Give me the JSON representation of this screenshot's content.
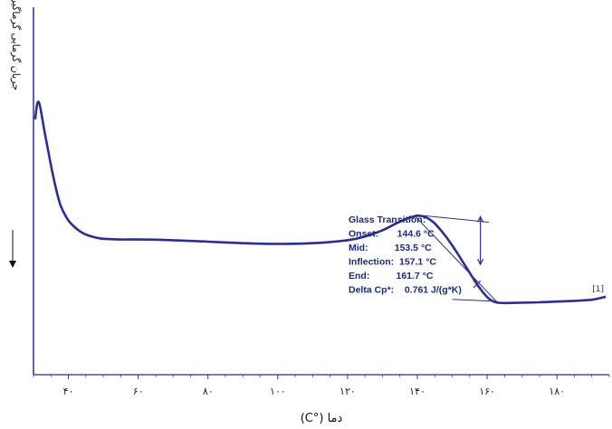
{
  "chart_data": {
    "type": "line",
    "title": "",
    "xlabel": "دما (°C)",
    "ylabel": "جریان گرمایی گرماگیر",
    "xlim": [
      30,
      195
    ],
    "ylim": [
      0,
      1
    ],
    "x_ticks": [
      40,
      60,
      80,
      100,
      120,
      140,
      160,
      180
    ],
    "x_tick_labels": [
      "۴۰",
      "۶۰",
      "۸۰",
      "۱۰۰",
      "۱۲۰",
      "۱۴۰",
      "۱۶۰",
      "۱۸۰"
    ],
    "curve_tag": "[1]",
    "colors": {
      "curve": "#2b2f8f",
      "axis": "#2b2f8f",
      "text": "#1d2a7a"
    },
    "series": [
      {
        "x": [
          30.5,
          31,
          31.5,
          32,
          33,
          34,
          35,
          36,
          37,
          38,
          40,
          42,
          44,
          46,
          48,
          50,
          55,
          60,
          70,
          80,
          90,
          100,
          110,
          120,
          125,
          130,
          134,
          137,
          139.5,
          141,
          142.5,
          144.6,
          147,
          150,
          153.5,
          155.5,
          157.1,
          159,
          160.5,
          161.7,
          163,
          165,
          170,
          175,
          180,
          185,
          190,
          194
        ],
        "y": [
          0.695,
          0.735,
          0.742,
          0.725,
          0.67,
          0.62,
          0.57,
          0.525,
          0.485,
          0.455,
          0.42,
          0.4,
          0.386,
          0.378,
          0.373,
          0.37,
          0.368,
          0.368,
          0.366,
          0.362,
          0.358,
          0.356,
          0.358,
          0.366,
          0.376,
          0.393,
          0.412,
          0.425,
          0.432,
          0.432,
          0.428,
          0.415,
          0.39,
          0.352,
          0.3,
          0.27,
          0.246,
          0.222,
          0.207,
          0.2,
          0.196,
          0.195,
          0.196,
          0.197,
          0.199,
          0.201,
          0.204,
          0.212
        ]
      }
    ],
    "annotation": {
      "lines": [
        "Glass Transition:",
        "Onset:       144.6 °C",
        "Mid:          153.5 °C",
        "Inflection:  157.1 °C",
        "End:          161.7 °C",
        "Delta Cp*:    0.761 J/(g*K)"
      ],
      "onset": 144.6,
      "mid": 153.5,
      "inflection": 157.1,
      "end": 161.7,
      "delta_cp": 0.761,
      "tangent_upper": {
        "x": [
          139.5,
          160.5
        ],
        "y": [
          0.435,
          0.415
        ]
      },
      "tangent_lower": {
        "x": [
          139.5,
          163
        ],
        "y": [
          0.43,
          0.196
        ]
      },
      "tangent_baseline": {
        "x": [
          150,
          161.7
        ],
        "y": [
          0.205,
          0.2
        ]
      }
    }
  }
}
